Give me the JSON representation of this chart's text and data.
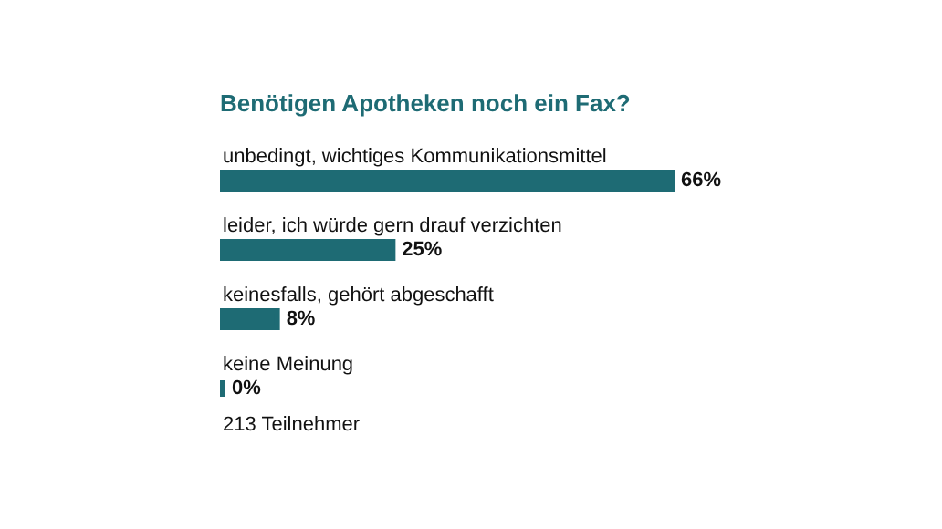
{
  "chart_data": {
    "type": "bar",
    "orientation": "horizontal",
    "title": "Benötigen Apotheken noch ein Fax?",
    "categories": [
      "unbedingt, wichtiges Kommunikationsmittel",
      "leider, ich würde gern drauf verzichten",
      "keinesfalls, gehört abgeschafft",
      "keine Meinung"
    ],
    "values": [
      66,
      25,
      8,
      0
    ],
    "color": "#1e6b74",
    "value_labels": [
      "66%",
      "25%",
      "8%",
      "0%"
    ],
    "annotations": [
      "213 Teilnehmer"
    ]
  }
}
